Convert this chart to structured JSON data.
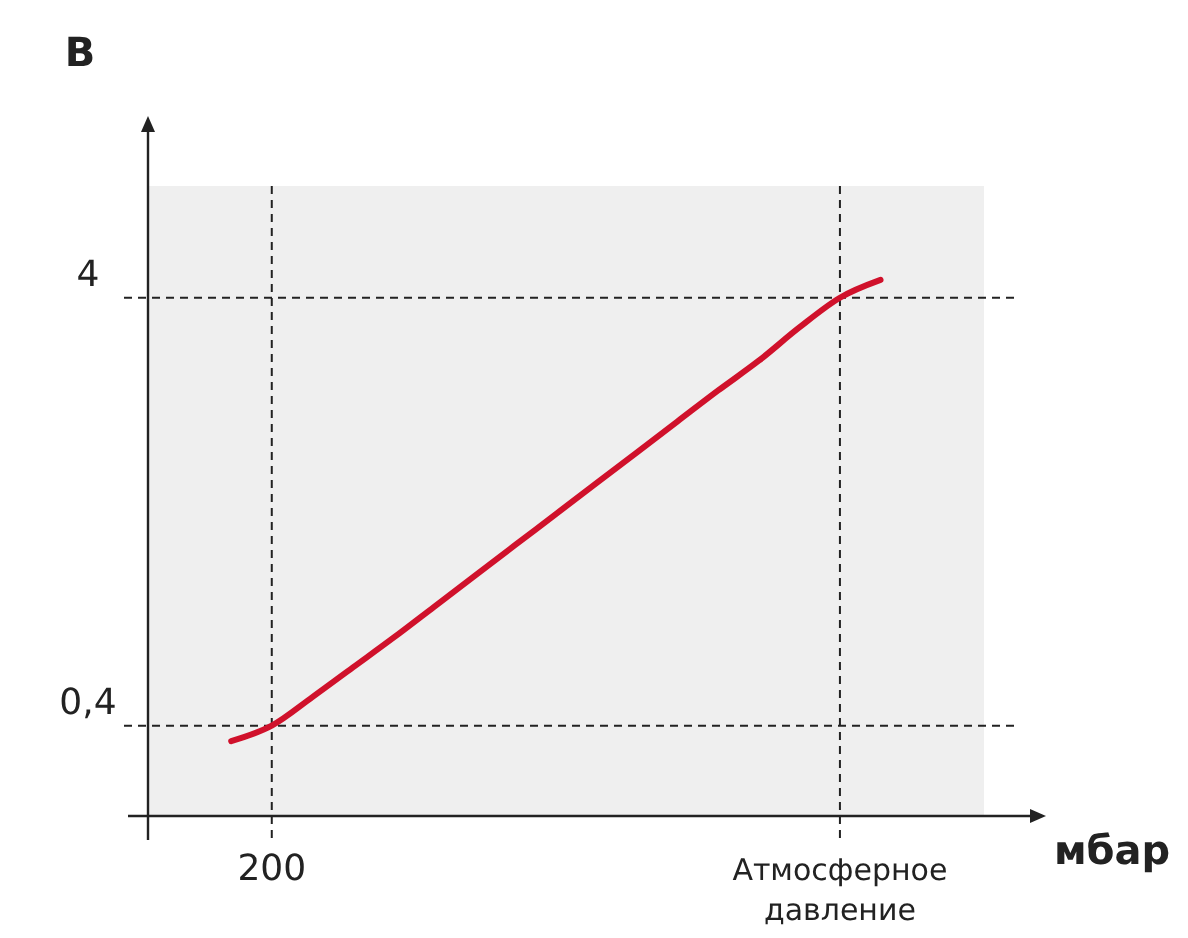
{
  "chart_data": {
    "type": "line",
    "xlabel": "мбар",
    "ylabel": "В",
    "categories": [
      null,
      "200",
      null,
      null,
      null,
      null,
      null,
      null,
      null,
      null,
      null,
      null,
      null,
      null,
      null,
      "Атмосферное давление",
      null
    ],
    "series": [
      {
        "color": "#d0112b",
        "values": [
          0.27,
          0.4,
          0.64,
          0.89,
          1.14,
          1.4,
          1.66,
          1.92,
          2.18,
          2.44,
          2.7,
          2.96,
          3.22,
          3.47,
          3.75,
          4,
          4.15
        ]
      }
    ],
    "ylim": [
      -0.36,
      4.94
    ],
    "yticks": [
      {
        "value": 0.4,
        "label": "0,4"
      },
      4
    ],
    "grid": true,
    "line_style": "solid",
    "marker": "none"
  }
}
